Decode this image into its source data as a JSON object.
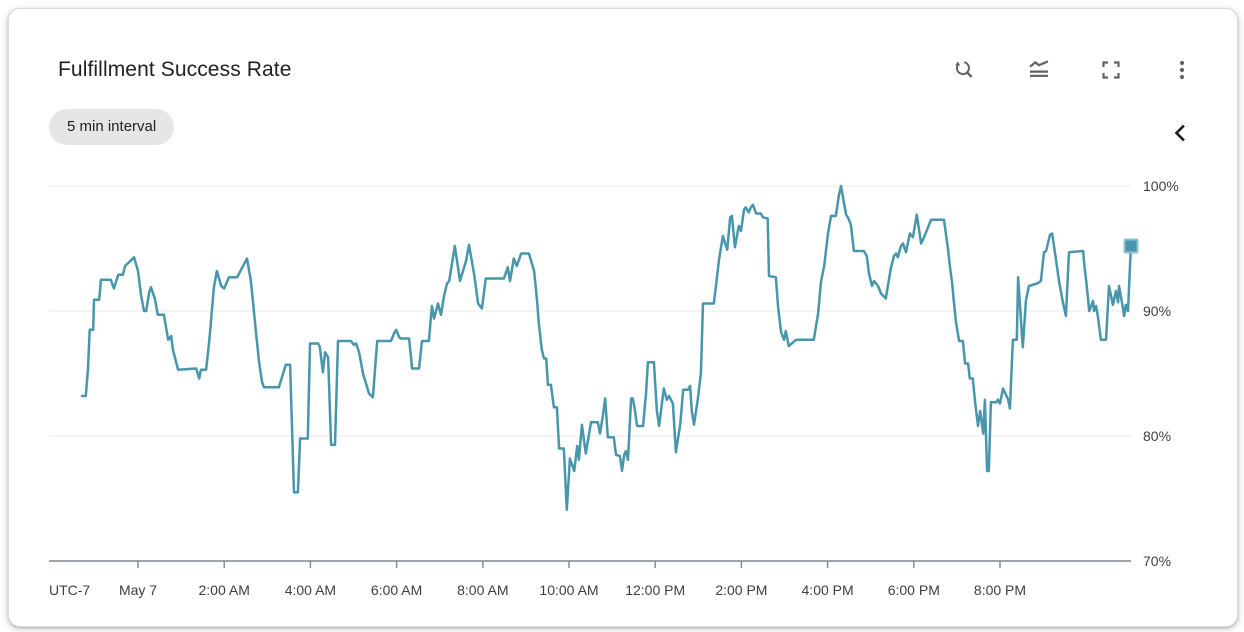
{
  "card": {
    "title": "Fulfillment Success Rate",
    "interval_badge": "5 min interval"
  },
  "toolbar": {
    "icons": [
      "zoom-reset-icon",
      "legend-toggle-icon",
      "fullscreen-icon",
      "more-vert-icon"
    ],
    "legend_collapse_icon": "chevron-left-icon"
  },
  "ui": {
    "colors": {
      "line": "#4796ab",
      "marker": "#4796ab",
      "marker_stroke": "#8fc2d0",
      "grid": "#e9eaed",
      "axis": "#80868b",
      "axis_text": "#3c4043",
      "icon": "#5f6368",
      "badge_bg": "#e6e6e6",
      "title_text": "#202124"
    }
  },
  "chart_data": {
    "type": "line",
    "title": "Fulfillment Success Rate",
    "subtitle": "5 min interval",
    "grid": true,
    "legend_position": "collapsed-right",
    "x_axis": {
      "timezone_label": "UTC-7",
      "tick_labels": [
        "May 7",
        "2:00 AM",
        "4:00 AM",
        "6:00 AM",
        "8:00 AM",
        "10:00 AM",
        "12:00 PM",
        "2:00 PM",
        "4:00 PM",
        "6:00 PM",
        "8:00 PM"
      ],
      "tick_hours": [
        0,
        2,
        4,
        6,
        8,
        10,
        12,
        14,
        16,
        18,
        20
      ],
      "range_hours": [
        -2.06,
        23.04
      ],
      "hours_origin": "May 7 00:00"
    },
    "y_axis": {
      "unit": "%",
      "side": "right",
      "tick_values": [
        70,
        80,
        90,
        100
      ],
      "tick_labels": [
        "70%",
        "80%",
        "90%",
        "100%"
      ],
      "range": [
        70,
        100
      ]
    },
    "series": [
      {
        "name": "Fulfillment Success Rate",
        "unit": "%",
        "color": "#4796ab",
        "end_marker": "square",
        "points": [
          [
            -1.3,
            83.2
          ],
          [
            -1.21,
            83.2
          ],
          [
            -1.16,
            85.4
          ],
          [
            -1.12,
            88.5
          ],
          [
            -1.04,
            88.5
          ],
          [
            -1.02,
            90.9
          ],
          [
            -0.9,
            90.9
          ],
          [
            -0.86,
            92.5
          ],
          [
            -0.63,
            92.5
          ],
          [
            -0.56,
            91.8
          ],
          [
            -0.46,
            92.9
          ],
          [
            -0.35,
            92.9
          ],
          [
            -0.3,
            93.6
          ],
          [
            -0.09,
            94.3
          ],
          [
            0.0,
            93.2
          ],
          [
            0.07,
            91.3
          ],
          [
            0.14,
            90.0
          ],
          [
            0.19,
            90.0
          ],
          [
            0.26,
            91.5
          ],
          [
            0.3,
            91.9
          ],
          [
            0.39,
            91.0
          ],
          [
            0.46,
            89.7
          ],
          [
            0.6,
            89.7
          ],
          [
            0.7,
            87.7
          ],
          [
            0.77,
            88.0
          ],
          [
            0.81,
            86.9
          ],
          [
            0.93,
            85.3
          ],
          [
            1.35,
            85.4
          ],
          [
            1.42,
            84.6
          ],
          [
            1.46,
            85.3
          ],
          [
            1.58,
            85.3
          ],
          [
            1.65,
            87.5
          ],
          [
            1.69,
            89.0
          ],
          [
            1.76,
            91.9
          ],
          [
            1.83,
            93.2
          ],
          [
            1.93,
            92.0
          ],
          [
            2.0,
            91.8
          ],
          [
            2.11,
            92.7
          ],
          [
            2.3,
            92.7
          ],
          [
            2.53,
            94.2
          ],
          [
            2.62,
            92.4
          ],
          [
            2.69,
            90.0
          ],
          [
            2.74,
            88.2
          ],
          [
            2.81,
            85.9
          ],
          [
            2.88,
            84.3
          ],
          [
            2.92,
            83.9
          ],
          [
            3.27,
            83.9
          ],
          [
            3.43,
            85.7
          ],
          [
            3.53,
            85.7
          ],
          [
            3.62,
            75.5
          ],
          [
            3.71,
            75.5
          ],
          [
            3.76,
            79.8
          ],
          [
            3.94,
            79.8
          ],
          [
            3.99,
            87.4
          ],
          [
            4.18,
            87.4
          ],
          [
            4.22,
            87.1
          ],
          [
            4.29,
            85.1
          ],
          [
            4.34,
            86.7
          ],
          [
            4.41,
            86.3
          ],
          [
            4.48,
            79.3
          ],
          [
            4.57,
            79.3
          ],
          [
            4.64,
            87.6
          ],
          [
            4.94,
            87.6
          ],
          [
            5.01,
            87.3
          ],
          [
            5.06,
            87.4
          ],
          [
            5.13,
            86.7
          ],
          [
            5.22,
            85.0
          ],
          [
            5.29,
            84.2
          ],
          [
            5.36,
            83.4
          ],
          [
            5.45,
            83.1
          ],
          [
            5.55,
            87.6
          ],
          [
            5.87,
            87.6
          ],
          [
            5.94,
            88.2
          ],
          [
            5.99,
            88.5
          ],
          [
            6.06,
            87.9
          ],
          [
            6.1,
            87.8
          ],
          [
            6.29,
            87.8
          ],
          [
            6.36,
            85.4
          ],
          [
            6.52,
            85.4
          ],
          [
            6.59,
            87.6
          ],
          [
            6.75,
            87.6
          ],
          [
            6.82,
            90.4
          ],
          [
            6.87,
            89.4
          ],
          [
            6.96,
            90.6
          ],
          [
            7.03,
            89.7
          ],
          [
            7.1,
            91.2
          ],
          [
            7.17,
            92.2
          ],
          [
            7.22,
            92.4
          ],
          [
            7.35,
            95.2
          ],
          [
            7.47,
            92.4
          ],
          [
            7.61,
            94.0
          ],
          [
            7.68,
            95.3
          ],
          [
            7.8,
            92.9
          ],
          [
            7.89,
            90.6
          ],
          [
            7.98,
            90.2
          ],
          [
            8.07,
            92.6
          ],
          [
            8.49,
            92.6
          ],
          [
            8.58,
            93.5
          ],
          [
            8.63,
            92.4
          ],
          [
            8.72,
            94.2
          ],
          [
            8.79,
            93.6
          ],
          [
            8.89,
            94.6
          ],
          [
            9.07,
            94.6
          ],
          [
            9.19,
            93.2
          ],
          [
            9.26,
            90.8
          ],
          [
            9.3,
            89.0
          ],
          [
            9.37,
            86.9
          ],
          [
            9.42,
            86.2
          ],
          [
            9.47,
            86.2
          ],
          [
            9.51,
            84.1
          ],
          [
            9.58,
            84.1
          ],
          [
            9.65,
            82.3
          ],
          [
            9.72,
            82.3
          ],
          [
            9.77,
            79.0
          ],
          [
            9.88,
            79.0
          ],
          [
            9.95,
            74.1
          ],
          [
            10.02,
            78.2
          ],
          [
            10.12,
            77.2
          ],
          [
            10.19,
            79.2
          ],
          [
            10.23,
            78.1
          ],
          [
            10.3,
            80.9
          ],
          [
            10.39,
            78.6
          ],
          [
            10.51,
            81.1
          ],
          [
            10.67,
            81.1
          ],
          [
            10.72,
            80.2
          ],
          [
            10.79,
            81.7
          ],
          [
            10.84,
            83.0
          ],
          [
            10.9,
            79.9
          ],
          [
            11.04,
            79.9
          ],
          [
            11.09,
            78.5
          ],
          [
            11.18,
            78.4
          ],
          [
            11.23,
            77.2
          ],
          [
            11.28,
            78.5
          ],
          [
            11.32,
            78.8
          ],
          [
            11.37,
            78.1
          ],
          [
            11.44,
            83.0
          ],
          [
            11.48,
            83.0
          ],
          [
            11.53,
            82.1
          ],
          [
            11.58,
            80.8
          ],
          [
            11.72,
            80.8
          ],
          [
            11.79,
            83.5
          ],
          [
            11.83,
            85.9
          ],
          [
            11.97,
            85.9
          ],
          [
            12.04,
            82.0
          ],
          [
            12.09,
            80.8
          ],
          [
            12.2,
            83.8
          ],
          [
            12.27,
            82.9
          ],
          [
            12.32,
            83.2
          ],
          [
            12.41,
            82.6
          ],
          [
            12.48,
            78.7
          ],
          [
            12.58,
            80.9
          ],
          [
            12.65,
            83.7
          ],
          [
            12.76,
            83.7
          ],
          [
            12.81,
            84.0
          ],
          [
            12.85,
            82.0
          ],
          [
            12.9,
            80.9
          ],
          [
            12.99,
            83.0
          ],
          [
            13.06,
            85.0
          ],
          [
            13.11,
            90.6
          ],
          [
            13.36,
            90.6
          ],
          [
            13.41,
            92.0
          ],
          [
            13.48,
            94.1
          ],
          [
            13.57,
            96.0
          ],
          [
            13.67,
            94.9
          ],
          [
            13.74,
            97.5
          ],
          [
            13.78,
            97.6
          ],
          [
            13.85,
            95.1
          ],
          [
            13.94,
            96.8
          ],
          [
            13.99,
            96.4
          ],
          [
            14.06,
            98.1
          ],
          [
            14.1,
            98.3
          ],
          [
            14.17,
            97.9
          ],
          [
            14.22,
            98.3
          ],
          [
            14.27,
            98.5
          ],
          [
            14.34,
            97.8
          ],
          [
            14.45,
            97.8
          ],
          [
            14.5,
            97.5
          ],
          [
            14.61,
            97.4
          ],
          [
            14.64,
            92.8
          ],
          [
            14.8,
            92.7
          ],
          [
            14.85,
            90.4
          ],
          [
            14.92,
            88.3
          ],
          [
            14.99,
            87.7
          ],
          [
            15.03,
            88.4
          ],
          [
            15.1,
            87.2
          ],
          [
            15.27,
            87.7
          ],
          [
            15.68,
            87.7
          ],
          [
            15.78,
            89.8
          ],
          [
            15.85,
            92.4
          ],
          [
            15.92,
            93.6
          ],
          [
            16.01,
            96.2
          ],
          [
            16.08,
            97.6
          ],
          [
            16.19,
            97.6
          ],
          [
            16.26,
            99.2
          ],
          [
            16.31,
            100.0
          ],
          [
            16.43,
            97.7
          ],
          [
            16.47,
            97.5
          ],
          [
            16.54,
            96.9
          ],
          [
            16.61,
            94.8
          ],
          [
            16.84,
            94.8
          ],
          [
            16.91,
            94.4
          ],
          [
            16.96,
            93.0
          ],
          [
            17.03,
            92.0
          ],
          [
            17.08,
            92.4
          ],
          [
            17.17,
            92.0
          ],
          [
            17.24,
            91.4
          ],
          [
            17.35,
            91.0
          ],
          [
            17.47,
            93.5
          ],
          [
            17.54,
            94.4
          ],
          [
            17.59,
            94.6
          ],
          [
            17.63,
            94.3
          ],
          [
            17.7,
            95.2
          ],
          [
            17.75,
            95.4
          ],
          [
            17.82,
            94.7
          ],
          [
            17.91,
            96.2
          ],
          [
            17.98,
            95.9
          ],
          [
            18.07,
            97.7
          ],
          [
            18.17,
            95.4
          ],
          [
            18.24,
            95.9
          ],
          [
            18.4,
            97.3
          ],
          [
            18.7,
            97.3
          ],
          [
            18.79,
            95.1
          ],
          [
            18.84,
            93.5
          ],
          [
            18.89,
            92.2
          ],
          [
            18.93,
            90.7
          ],
          [
            18.98,
            89.1
          ],
          [
            19.05,
            87.6
          ],
          [
            19.14,
            87.6
          ],
          [
            19.19,
            85.8
          ],
          [
            19.26,
            85.8
          ],
          [
            19.3,
            84.6
          ],
          [
            19.37,
            84.6
          ],
          [
            19.42,
            82.8
          ],
          [
            19.49,
            80.8
          ],
          [
            19.54,
            82.0
          ],
          [
            19.61,
            80.2
          ],
          [
            19.65,
            82.9
          ],
          [
            19.7,
            77.2
          ],
          [
            19.74,
            77.2
          ],
          [
            19.79,
            82.7
          ],
          [
            19.91,
            82.7
          ],
          [
            19.95,
            82.9
          ],
          [
            20.0,
            82.6
          ],
          [
            20.07,
            83.8
          ],
          [
            20.19,
            82.9
          ],
          [
            20.23,
            82.2
          ],
          [
            20.3,
            87.7
          ],
          [
            20.39,
            87.7
          ],
          [
            20.42,
            92.7
          ],
          [
            20.53,
            87.1
          ],
          [
            20.6,
            90.8
          ],
          [
            20.67,
            92.0
          ],
          [
            20.86,
            92.2
          ],
          [
            20.95,
            92.4
          ],
          [
            21.02,
            94.7
          ],
          [
            21.07,
            94.8
          ],
          [
            21.16,
            96.1
          ],
          [
            21.21,
            96.2
          ],
          [
            21.3,
            94.1
          ],
          [
            21.37,
            92.4
          ],
          [
            21.46,
            90.7
          ],
          [
            21.53,
            89.6
          ],
          [
            21.6,
            94.7
          ],
          [
            21.93,
            94.8
          ],
          [
            21.95,
            93.9
          ],
          [
            22.0,
            92.4
          ],
          [
            22.04,
            91.1
          ],
          [
            22.07,
            90.0
          ],
          [
            22.16,
            90.8
          ],
          [
            22.18,
            90.0
          ],
          [
            22.23,
            90.4
          ],
          [
            22.27,
            89.6
          ],
          [
            22.34,
            87.7
          ],
          [
            22.46,
            87.7
          ],
          [
            22.53,
            92.0
          ],
          [
            22.62,
            90.5
          ],
          [
            22.69,
            91.6
          ],
          [
            22.74,
            90.7
          ],
          [
            22.76,
            92.0
          ],
          [
            22.85,
            90.3
          ],
          [
            22.88,
            89.6
          ],
          [
            22.92,
            90.5
          ],
          [
            22.97,
            90.0
          ],
          [
            23.02,
            94.0
          ],
          [
            23.04,
            95.2
          ]
        ]
      }
    ]
  }
}
